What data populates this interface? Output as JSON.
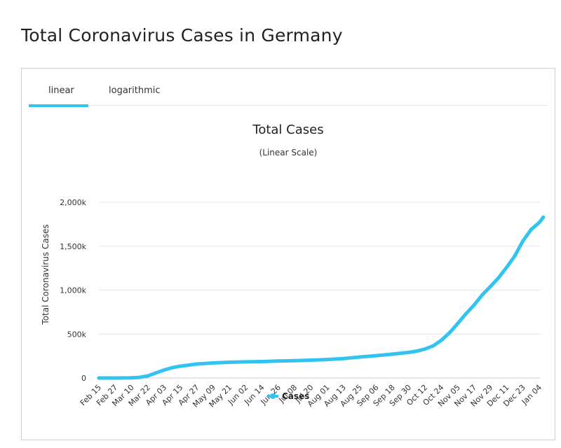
{
  "page": {
    "title": "Total Coronavirus Cases in Germany"
  },
  "tabs": [
    {
      "label": "linear",
      "active": true
    },
    {
      "label": "logarithmic",
      "active": false
    }
  ],
  "colors": {
    "series": "#33c3f0",
    "grid": "#e6e6e6",
    "tab_active": "#33c3f0"
  },
  "chart_data": {
    "type": "line",
    "title": "Total Cases",
    "subtitle": "(Linear Scale)",
    "ylabel": "Total Coronavirus Cases",
    "xlabel": "",
    "ylim": [
      0,
      2000000
    ],
    "yticks": [
      0,
      500000,
      1000000,
      1500000,
      2000000
    ],
    "ytick_labels": [
      "0",
      "500k",
      "1,000k",
      "1,500k",
      "2,000k"
    ],
    "xtick_labels": [
      "Feb 15",
      "Feb 27",
      "Mar 10",
      "Mar 22",
      "Apr 03",
      "Apr 15",
      "Apr 27",
      "May 09",
      "May 21",
      "Jun 02",
      "Jun 14",
      "Jun 26",
      "Jul 08",
      "Jul 20",
      "Aug 01",
      "Aug 13",
      "Aug 25",
      "Sep 06",
      "Sep 18",
      "Sep 30",
      "Oct 12",
      "Oct 24",
      "Nov 05",
      "Nov 17",
      "Nov 29",
      "Dec 11",
      "Dec 23",
      "Jan 04"
    ],
    "grid": true,
    "legend": "bottom-center",
    "series": [
      {
        "name": "Cases",
        "x": [
          "Feb 15",
          "Feb 27",
          "Mar 10",
          "Mar 16",
          "Mar 22",
          "Mar 28",
          "Apr 03",
          "Apr 09",
          "Apr 15",
          "Apr 27",
          "May 09",
          "May 21",
          "Jun 02",
          "Jun 14",
          "Jun 26",
          "Jul 08",
          "Jul 20",
          "Aug 01",
          "Aug 13",
          "Aug 25",
          "Sep 06",
          "Sep 18",
          "Sep 30",
          "Oct 06",
          "Oct 12",
          "Oct 18",
          "Oct 24",
          "Oct 30",
          "Nov 05",
          "Nov 11",
          "Nov 17",
          "Nov 23",
          "Nov 29",
          "Dec 05",
          "Dec 11",
          "Dec 17",
          "Dec 23",
          "Dec 29",
          "Jan 04",
          "Jan 07"
        ],
        "values": [
          16,
          16,
          1500,
          7000,
          24000,
          58000,
          91000,
          118000,
          135000,
          159000,
          171000,
          179000,
          184000,
          187000,
          194000,
          198000,
          203000,
          210000,
          221000,
          239000,
          254000,
          272000,
          292000,
          306000,
          330000,
          366000,
          430000,
          515000,
          620000,
          730000,
          830000,
          945000,
          1040000,
          1140000,
          1260000,
          1390000,
          1560000,
          1690000,
          1770000,
          1830000
        ]
      }
    ]
  }
}
